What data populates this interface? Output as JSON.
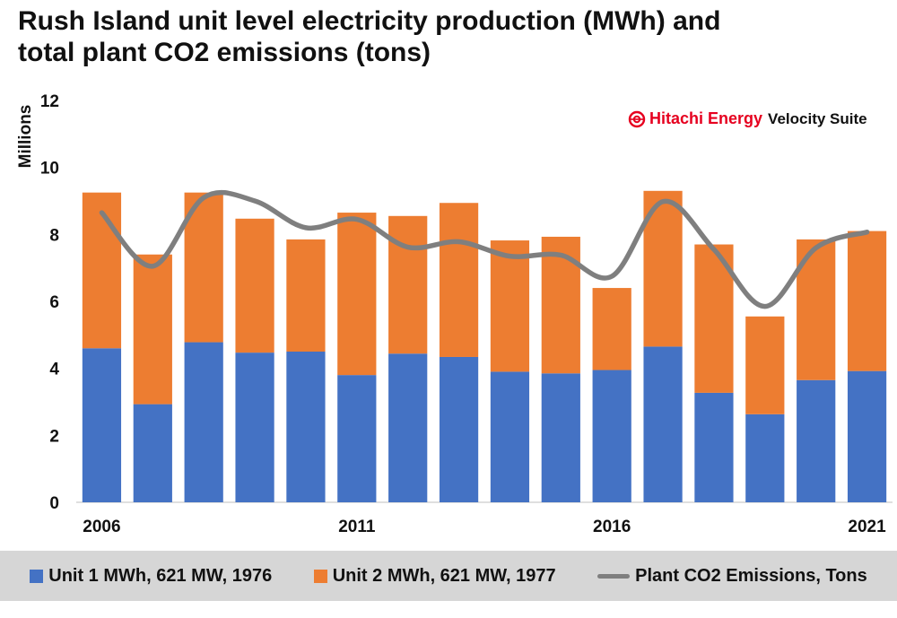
{
  "title_lines": [
    "Rush Island unit level electricity production (MWh) and",
    "total plant CO2 emissions (tons)"
  ],
  "watermark": {
    "brand": "Hitachi Energy",
    "suite": "Velocity Suite"
  },
  "chart_data": {
    "type": "bar",
    "stacked": true,
    "categories": [
      "2006",
      "2007",
      "2008",
      "2009",
      "2010",
      "2011",
      "2012",
      "2013",
      "2014",
      "2015",
      "2016",
      "2017",
      "2018",
      "2019",
      "2020",
      "2021"
    ],
    "x_tick_labels": [
      "2006",
      "2011",
      "2016",
      "2021"
    ],
    "y_unit_label": "Millions",
    "ylim": [
      0,
      12
    ],
    "yticks": [
      0,
      2,
      4,
      6,
      8,
      10,
      12
    ],
    "grid": false,
    "legend_position": "bottom",
    "series": [
      {
        "name": "Unit 1 MWh, 621 MW, 1976",
        "kind": "bar",
        "color": "#4472c4",
        "values": [
          4.6,
          2.93,
          4.78,
          4.47,
          4.5,
          3.8,
          4.44,
          4.34,
          3.9,
          3.85,
          3.95,
          4.65,
          3.27,
          2.63,
          3.65,
          3.92
        ]
      },
      {
        "name": "Unit 2 MWh, 621 MW, 1977",
        "kind": "bar",
        "color": "#ed7d31",
        "values": [
          4.65,
          4.47,
          4.47,
          4.0,
          3.35,
          4.85,
          4.11,
          4.6,
          3.92,
          4.08,
          2.45,
          4.65,
          4.43,
          2.92,
          4.2,
          4.18
        ]
      },
      {
        "name": "Plant CO2 Emissions, Tons",
        "kind": "line",
        "color": "#7f7f7f",
        "values": [
          8.65,
          7.05,
          9.1,
          9.0,
          8.2,
          8.45,
          7.62,
          7.78,
          7.35,
          7.38,
          6.75,
          8.98,
          7.55,
          5.85,
          7.6,
          8.07
        ]
      }
    ]
  }
}
